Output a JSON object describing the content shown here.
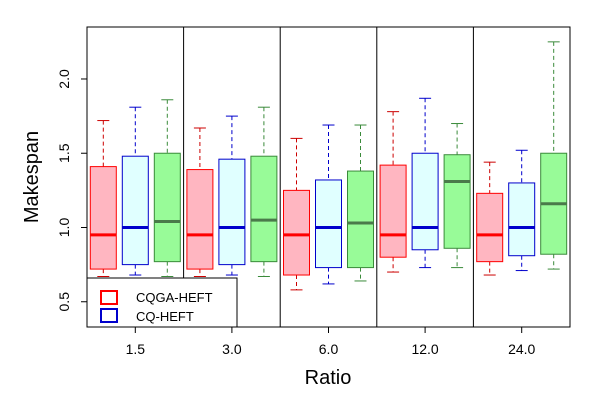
{
  "chart_data": {
    "type": "boxplot",
    "xlabel": "Ratio",
    "ylabel": "Makespan",
    "ylim": [
      0.33,
      2.35
    ],
    "yticks": [
      0.5,
      1.0,
      1.5,
      2.0
    ],
    "ytick_labels": [
      "0.5",
      "1.0",
      "1.5",
      "2.0"
    ],
    "categories": [
      "1.5",
      "3.0",
      "6.0",
      "12.0",
      "24.0"
    ],
    "grid": false,
    "legend_position": "bottom-left",
    "colors": {
      "CQGA-HEFT": {
        "fill": "#ffb6c1",
        "stroke": "#ff0000",
        "median": "#ff0000",
        "whisker": "#cc0000"
      },
      "CQ-HEFT": {
        "fill": "#e0ffff",
        "stroke": "#0000cc",
        "median": "#0000cc",
        "whisker": "#0000cc"
      },
      "third": {
        "fill": "#98fb98",
        "stroke": "#3a8a3a",
        "median": "#4a7a4a",
        "whisker": "#3a8a3a"
      }
    },
    "legend": [
      {
        "name": "CQGA-HEFT",
        "color": "#ff0000"
      },
      {
        "name": "CQ-HEFT",
        "color": "#0000cc"
      }
    ],
    "series": [
      {
        "key": "CQGA-HEFT",
        "boxes": [
          {
            "min": 0.67,
            "q1": 0.72,
            "median": 0.95,
            "q3": 1.41,
            "max": 1.72
          },
          {
            "min": 0.67,
            "q1": 0.72,
            "median": 0.95,
            "q3": 1.39,
            "max": 1.67
          },
          {
            "min": 0.58,
            "q1": 0.68,
            "median": 0.95,
            "q3": 1.25,
            "max": 1.6
          },
          {
            "min": 0.7,
            "q1": 0.8,
            "median": 0.95,
            "q3": 1.42,
            "max": 1.78
          },
          {
            "min": 0.68,
            "q1": 0.77,
            "median": 0.95,
            "q3": 1.23,
            "max": 1.44
          }
        ]
      },
      {
        "key": "CQ-HEFT",
        "boxes": [
          {
            "min": 0.68,
            "q1": 0.75,
            "median": 1.0,
            "q3": 1.48,
            "max": 1.81
          },
          {
            "min": 0.68,
            "q1": 0.75,
            "median": 1.0,
            "q3": 1.46,
            "max": 1.75
          },
          {
            "min": 0.62,
            "q1": 0.73,
            "median": 1.0,
            "q3": 1.32,
            "max": 1.69
          },
          {
            "min": 0.73,
            "q1": 0.85,
            "median": 1.0,
            "q3": 1.5,
            "max": 1.87
          },
          {
            "min": 0.71,
            "q1": 0.81,
            "median": 1.0,
            "q3": 1.3,
            "max": 1.52
          }
        ]
      },
      {
        "key": "third",
        "boxes": [
          {
            "min": 0.67,
            "q1": 0.77,
            "median": 1.04,
            "q3": 1.5,
            "max": 1.86
          },
          {
            "min": 0.67,
            "q1": 0.77,
            "median": 1.05,
            "q3": 1.48,
            "max": 1.81
          },
          {
            "min": 0.64,
            "q1": 0.73,
            "median": 1.03,
            "q3": 1.38,
            "max": 1.69
          },
          {
            "min": 0.73,
            "q1": 0.86,
            "median": 1.31,
            "q3": 1.49,
            "max": 1.7
          },
          {
            "min": 0.72,
            "q1": 0.82,
            "median": 1.16,
            "q3": 1.5,
            "max": 2.25
          }
        ]
      }
    ]
  }
}
